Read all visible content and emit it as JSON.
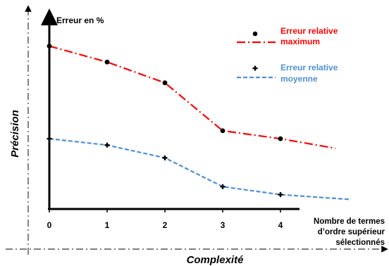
{
  "chart_data": {
    "type": "line",
    "inner_ylabel": "Erreur en %",
    "xlabel": "Nombre de termes d’ordre supérieur sélectionnés",
    "xlabel_lines": [
      "Nombre de termes",
      "d’ordre supérieur",
      "sélectionnés"
    ],
    "outer_xlabel": "Complexité",
    "outer_ylabel": "Précision",
    "categories": [
      "0",
      "1",
      "2",
      "3",
      "4"
    ],
    "grid": false,
    "legend_position": "top-right",
    "series": [
      {
        "name": "Erreur relative maximum",
        "name_lines": [
          "Erreur relative",
          "maximum"
        ],
        "color": "#ff0000",
        "marker": "dot",
        "line_style": "dash-dot",
        "x": [
          0,
          1,
          2,
          3,
          4
        ],
        "values": [
          10.2,
          9.2,
          7.9,
          4.9,
          4.4
        ],
        "trend_end": {
          "x": 4.95,
          "value": 3.8
        }
      },
      {
        "name": "Erreur relative moyenne",
        "name_lines": [
          "Erreur relative",
          "moyenne"
        ],
        "color": "#4f8fd6",
        "marker": "plus",
        "line_style": "dashed",
        "x": [
          0,
          1,
          2,
          3,
          4
        ],
        "values": [
          4.4,
          4.0,
          3.2,
          1.4,
          0.9
        ],
        "trend_end": {
          "x": 5.2,
          "value": 0.6
        }
      }
    ]
  }
}
